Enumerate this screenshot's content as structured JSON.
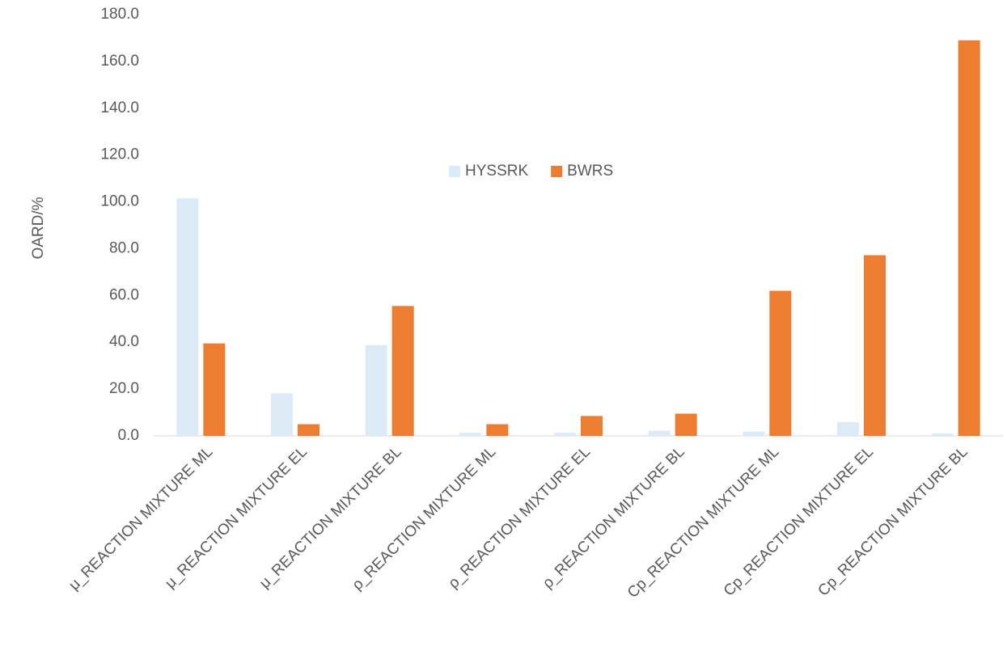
{
  "chart_data": {
    "type": "bar",
    "y_label": "OARD/%",
    "categories": [
      "μ_REACTION MIXTURE ML",
      "μ_REACTION MIXTURE EL",
      "μ_REACTION MIXTURE BL",
      "ρ_REACTION MIXTURE ML",
      "ρ_REACTION MIXTURE EL",
      "ρ_REACTION MIXTURE BL",
      "Cp_REACTION MIXTURE ML",
      "Cp_REACTION MIXTURE EL",
      "Cp_REACTION MIXTURE BL"
    ],
    "series": [
      {
        "name": "HYSSRK",
        "color": "#ddebf7",
        "values": [
          101.5,
          18.2,
          38.8,
          1.3,
          1.3,
          2.2,
          1.8,
          5.9,
          1.0
        ]
      },
      {
        "name": "BWRS",
        "color": "#ed7d31",
        "values": [
          39.5,
          5.0,
          55.5,
          5.0,
          8.5,
          9.5,
          62.0,
          77.2,
          169.0
        ]
      }
    ],
    "ylim": [
      0,
      180
    ],
    "yticks": [
      {
        "value": 0,
        "label": "0.0"
      },
      {
        "value": 20,
        "label": "20.0"
      },
      {
        "value": 40,
        "label": "40.0"
      },
      {
        "value": 60,
        "label": "60.0"
      },
      {
        "value": 80,
        "label": "80.0"
      },
      {
        "value": 100,
        "label": "100.0"
      },
      {
        "value": 120,
        "label": "120.0"
      },
      {
        "value": 140,
        "label": "140.0"
      },
      {
        "value": 160,
        "label": "160.0"
      },
      {
        "value": 180,
        "label": "180.0"
      }
    ],
    "grid": false,
    "legend": "center"
  }
}
